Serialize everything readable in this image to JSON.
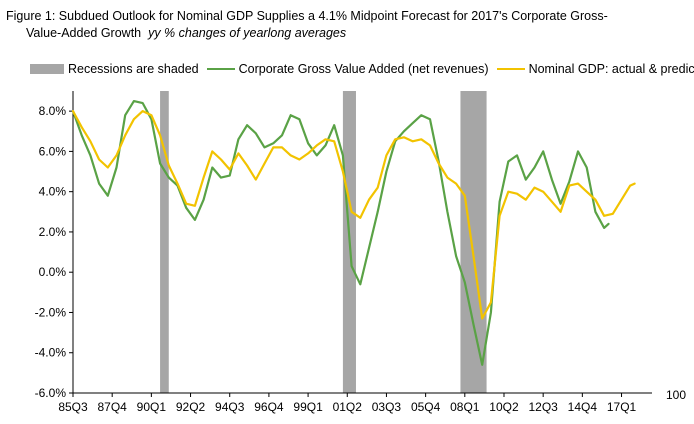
{
  "title": {
    "line1": "Figure 1: Subdued Outlook for Nominal GDP Supplies a 4.1% Midpoint Forecast for 2017's Corporate Gross-",
    "line2": "Value-Added Growth",
    "subtitle": "yy % changes of yearlong averages"
  },
  "legend": {
    "recessions": "Recessions are shaded",
    "gva": "Corporate Gross Value Added (net revenues)",
    "gdp": "Nominal GDP: actual & predicted"
  },
  "colors": {
    "gva": "#5aa246",
    "gdp": "#f2c300",
    "recession": "#a6a6a6"
  },
  "chart_data": {
    "type": "line",
    "x_unit": "quarters (labels YYQn)",
    "x_range": [
      "85Q3",
      "18Q4"
    ],
    "x_ticks": [
      "85Q3",
      "87Q4",
      "90Q1",
      "92Q2",
      "94Q3",
      "96Q4",
      "99Q1",
      "01Q2",
      "03Q3",
      "05Q4",
      "08Q1",
      "10Q2",
      "12Q3",
      "14Q4",
      "17Q1"
    ],
    "y_ticks": [
      "8.0%",
      "6.0%",
      "4.0%",
      "2.0%",
      "0.0%",
      "-2.0%",
      "-4.0%",
      "-6.0%"
    ],
    "ylim": [
      -6,
      9
    ],
    "right_axis_label": "100",
    "recessions": [
      [
        "90Q3",
        "91Q1"
      ],
      [
        "01Q1",
        "01Q4"
      ],
      [
        "07Q4",
        "09Q2"
      ]
    ],
    "series": [
      {
        "name": "Corporate Gross Value Added (net revenues)",
        "points": [
          [
            "85Q3",
            8.0
          ],
          [
            "86Q1",
            6.8
          ],
          [
            "86Q3",
            5.8
          ],
          [
            "87Q1",
            4.4
          ],
          [
            "87Q3",
            3.8
          ],
          [
            "88Q1",
            5.2
          ],
          [
            "88Q3",
            7.8
          ],
          [
            "89Q1",
            8.5
          ],
          [
            "89Q3",
            8.4
          ],
          [
            "90Q1",
            7.6
          ],
          [
            "90Q3",
            5.4
          ],
          [
            "91Q1",
            4.7
          ],
          [
            "91Q3",
            4.3
          ],
          [
            "92Q1",
            3.2
          ],
          [
            "92Q3",
            2.6
          ],
          [
            "93Q1",
            3.6
          ],
          [
            "93Q3",
            5.2
          ],
          [
            "94Q1",
            4.7
          ],
          [
            "94Q3",
            4.8
          ],
          [
            "95Q1",
            6.6
          ],
          [
            "95Q3",
            7.3
          ],
          [
            "96Q1",
            6.9
          ],
          [
            "96Q3",
            6.2
          ],
          [
            "97Q1",
            6.4
          ],
          [
            "97Q3",
            6.8
          ],
          [
            "98Q1",
            7.8
          ],
          [
            "98Q3",
            7.6
          ],
          [
            "99Q1",
            6.4
          ],
          [
            "99Q3",
            5.8
          ],
          [
            "00Q1",
            6.3
          ],
          [
            "00Q3",
            7.3
          ],
          [
            "01Q1",
            5.8
          ],
          [
            "01Q3",
            0.3
          ],
          [
            "02Q1",
            -0.6
          ],
          [
            "02Q3",
            1.2
          ],
          [
            "03Q1",
            3.0
          ],
          [
            "03Q3",
            5.0
          ],
          [
            "04Q1",
            6.5
          ],
          [
            "04Q3",
            7.0
          ],
          [
            "05Q1",
            7.4
          ],
          [
            "05Q3",
            7.8
          ],
          [
            "06Q1",
            7.6
          ],
          [
            "06Q3",
            5.5
          ],
          [
            "07Q1",
            3.0
          ],
          [
            "07Q3",
            0.8
          ],
          [
            "08Q1",
            -0.5
          ],
          [
            "08Q3",
            -2.6
          ],
          [
            "09Q1",
            -4.6
          ],
          [
            "09Q3",
            -2.0
          ],
          [
            "10Q1",
            3.5
          ],
          [
            "10Q3",
            5.5
          ],
          [
            "11Q1",
            5.8
          ],
          [
            "11Q3",
            4.6
          ],
          [
            "12Q1",
            5.2
          ],
          [
            "12Q3",
            6.0
          ],
          [
            "13Q1",
            4.6
          ],
          [
            "13Q3",
            3.4
          ],
          [
            "14Q1",
            4.5
          ],
          [
            "14Q3",
            6.0
          ],
          [
            "15Q1",
            5.2
          ],
          [
            "15Q3",
            3.0
          ],
          [
            "16Q1",
            2.2
          ],
          [
            "16Q2",
            2.4
          ]
        ]
      },
      {
        "name": "Nominal GDP: actual & predicted",
        "points": [
          [
            "85Q3",
            8.0
          ],
          [
            "86Q1",
            7.2
          ],
          [
            "86Q3",
            6.5
          ],
          [
            "87Q1",
            5.6
          ],
          [
            "87Q3",
            5.2
          ],
          [
            "88Q1",
            5.8
          ],
          [
            "88Q3",
            6.8
          ],
          [
            "89Q1",
            7.6
          ],
          [
            "89Q3",
            8.0
          ],
          [
            "90Q1",
            7.8
          ],
          [
            "90Q3",
            6.8
          ],
          [
            "91Q1",
            5.3
          ],
          [
            "91Q3",
            4.4
          ],
          [
            "92Q1",
            3.4
          ],
          [
            "92Q3",
            3.3
          ],
          [
            "93Q1",
            4.7
          ],
          [
            "93Q3",
            6.0
          ],
          [
            "94Q1",
            5.6
          ],
          [
            "94Q3",
            5.1
          ],
          [
            "95Q1",
            5.9
          ],
          [
            "95Q3",
            5.3
          ],
          [
            "96Q1",
            4.6
          ],
          [
            "96Q3",
            5.4
          ],
          [
            "97Q1",
            6.2
          ],
          [
            "97Q3",
            6.2
          ],
          [
            "98Q1",
            5.8
          ],
          [
            "98Q3",
            5.6
          ],
          [
            "99Q1",
            5.9
          ],
          [
            "99Q3",
            6.3
          ],
          [
            "00Q1",
            6.6
          ],
          [
            "00Q3",
            6.5
          ],
          [
            "01Q1",
            5.0
          ],
          [
            "01Q3",
            3.0
          ],
          [
            "02Q1",
            2.7
          ],
          [
            "02Q3",
            3.6
          ],
          [
            "03Q1",
            4.2
          ],
          [
            "03Q3",
            5.8
          ],
          [
            "04Q1",
            6.6
          ],
          [
            "04Q3",
            6.7
          ],
          [
            "05Q1",
            6.5
          ],
          [
            "05Q3",
            6.6
          ],
          [
            "06Q1",
            6.3
          ],
          [
            "06Q3",
            5.4
          ],
          [
            "07Q1",
            4.7
          ],
          [
            "07Q3",
            4.4
          ],
          [
            "08Q1",
            3.8
          ],
          [
            "08Q3",
            0.8
          ],
          [
            "09Q1",
            -2.3
          ],
          [
            "09Q3",
            -1.5
          ],
          [
            "10Q1",
            2.8
          ],
          [
            "10Q3",
            4.0
          ],
          [
            "11Q1",
            3.9
          ],
          [
            "11Q3",
            3.6
          ],
          [
            "12Q1",
            4.2
          ],
          [
            "12Q3",
            4.0
          ],
          [
            "13Q1",
            3.5
          ],
          [
            "13Q3",
            3.0
          ],
          [
            "14Q1",
            4.3
          ],
          [
            "14Q3",
            4.4
          ],
          [
            "15Q1",
            4.0
          ],
          [
            "15Q3",
            3.6
          ],
          [
            "16Q1",
            2.8
          ],
          [
            "16Q3",
            2.9
          ],
          [
            "17Q1",
            3.6
          ],
          [
            "17Q3",
            4.3
          ],
          [
            "17Q4",
            4.4
          ]
        ]
      }
    ]
  }
}
